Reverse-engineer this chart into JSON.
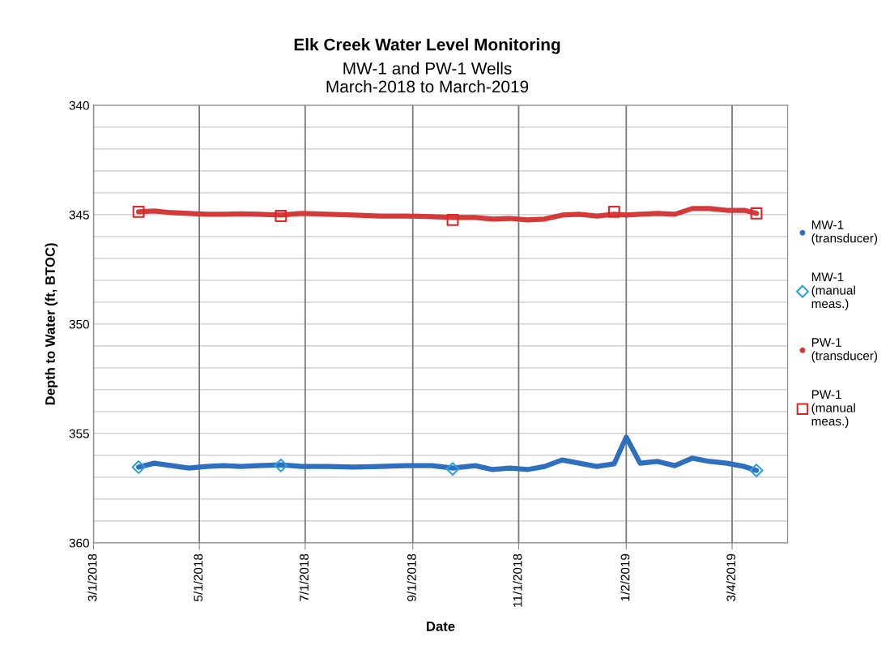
{
  "chart_data": {
    "type": "line",
    "title": "Elk Creek Water Level Monitoring",
    "subtitle": "MW-1 and PW-1 Wells\nMarch-2018 to March-2019",
    "xlabel": "Date",
    "ylabel": "Depth to Water (ft, BTOC)",
    "xlim": [
      "2018-03-01",
      "2019-04-05"
    ],
    "xticks": [
      {
        "value": "2018-03-01",
        "label": "3/1/2018"
      },
      {
        "value": "2018-05-01",
        "label": "5/1/2018"
      },
      {
        "value": "2018-07-01",
        "label": "7/1/2018"
      },
      {
        "value": "2018-09-01",
        "label": "9/1/2018"
      },
      {
        "value": "2018-11-01",
        "label": "11/1/2018"
      },
      {
        "value": "2019-01-02",
        "label": "1/2/2019"
      },
      {
        "value": "2019-03-04",
        "label": "3/4/2019"
      }
    ],
    "ylim": [
      360,
      340
    ],
    "yticks": [
      340,
      {
        "value": 341,
        "label": null
      },
      {
        "value": 342,
        "label": null
      },
      {
        "value": 343,
        "label": null
      },
      {
        "value": 344,
        "label": null
      },
      345,
      {
        "value": 346,
        "label": null
      },
      {
        "value": 347,
        "label": null
      },
      {
        "value": 348,
        "label": null
      },
      {
        "value": 349,
        "label": null
      },
      350,
      {
        "value": 351,
        "label": null
      },
      {
        "value": 352,
        "label": null
      },
      {
        "value": 353,
        "label": null
      },
      {
        "value": 354,
        "label": null
      },
      355,
      {
        "value": 356,
        "label": null
      },
      {
        "value": 357,
        "label": null
      },
      {
        "value": 358,
        "label": null
      },
      {
        "value": 359,
        "label": null
      },
      360
    ],
    "grid": true,
    "legend": "right",
    "series": [
      {
        "name": "MW-1\n(transducer)",
        "color": "#2f6fc0",
        "x": [
          "2018-03-27",
          "2018-04-05",
          "2018-04-15",
          "2018-04-25",
          "2018-05-05",
          "2018-05-15",
          "2018-05-25",
          "2018-06-04",
          "2018-06-17",
          "2018-06-29",
          "2018-07-14",
          "2018-07-29",
          "2018-08-13",
          "2018-08-28",
          "2018-09-12",
          "2018-09-24",
          "2018-10-07",
          "2018-10-17",
          "2018-10-27",
          "2018-11-06",
          "2018-11-16",
          "2018-11-26",
          "2018-12-06",
          "2018-12-16",
          "2018-12-26",
          "2019-01-02",
          "2019-01-10",
          "2019-01-20",
          "2019-01-30",
          "2019-02-09",
          "2019-02-19",
          "2019-03-01",
          "2019-03-11",
          "2019-03-18"
        ],
        "values": [
          356.54,
          356.36,
          356.47,
          356.58,
          356.51,
          356.47,
          356.51,
          356.47,
          356.43,
          356.51,
          356.51,
          356.54,
          356.51,
          356.47,
          356.47,
          356.58,
          356.47,
          356.65,
          356.58,
          356.65,
          356.51,
          356.21,
          356.36,
          356.51,
          356.39,
          355.17,
          356.36,
          356.28,
          356.47,
          356.13,
          356.28,
          356.36,
          356.51,
          356.69
        ]
      },
      {
        "name": "MW-1\n(manual\nmeas.)",
        "type": "scatter",
        "marker": "diamond",
        "color": "#2aa0e6",
        "x": [
          "2018-03-27",
          "2018-06-17",
          "2018-09-24",
          "2019-03-18"
        ],
        "values": [
          356.54,
          356.46,
          356.62,
          356.69
        ]
      },
      {
        "name": "PW-1\n(transducer)",
        "color": "#d43a3a",
        "x": [
          "2018-03-27",
          "2018-04-05",
          "2018-04-15",
          "2018-04-25",
          "2018-05-05",
          "2018-05-15",
          "2018-05-25",
          "2018-06-04",
          "2018-06-17",
          "2018-06-29",
          "2018-07-14",
          "2018-07-29",
          "2018-08-13",
          "2018-08-28",
          "2018-09-12",
          "2018-09-24",
          "2018-10-07",
          "2018-10-17",
          "2018-10-27",
          "2018-11-06",
          "2018-11-16",
          "2018-11-26",
          "2018-12-06",
          "2018-12-16",
          "2018-12-26",
          "2019-01-02",
          "2019-01-10",
          "2019-01-20",
          "2019-01-30",
          "2019-02-09",
          "2019-02-19",
          "2019-03-01",
          "2019-03-11",
          "2019-03-18"
        ],
        "values": [
          344.87,
          344.83,
          344.91,
          344.94,
          344.98,
          344.98,
          344.96,
          344.98,
          345.02,
          344.94,
          344.98,
          345.02,
          345.06,
          345.06,
          345.09,
          345.13,
          345.13,
          345.2,
          345.17,
          345.24,
          345.2,
          345.02,
          344.98,
          345.06,
          344.98,
          345.02,
          344.98,
          344.94,
          344.98,
          344.72,
          344.72,
          344.8,
          344.8,
          344.94
        ]
      },
      {
        "name": "PW-1\n(manual\nmeas.)",
        "type": "scatter",
        "marker": "square",
        "color": "#e02424",
        "x": [
          "2018-03-27",
          "2018-06-17",
          "2018-09-24",
          "2018-12-26",
          "2019-03-18"
        ],
        "values": [
          344.87,
          345.06,
          345.24,
          344.87,
          344.94
        ]
      }
    ]
  }
}
